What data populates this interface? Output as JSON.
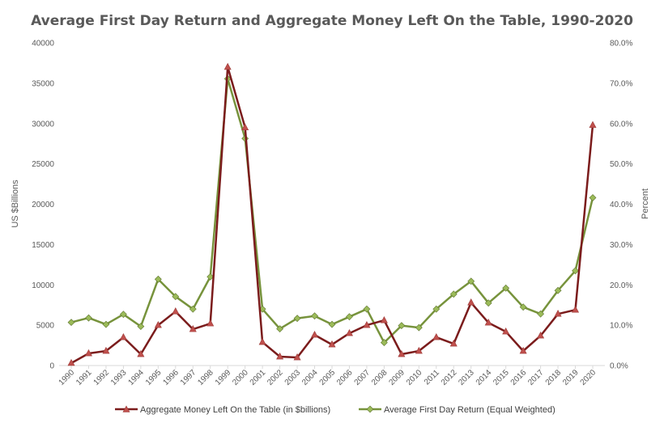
{
  "chart_data": {
    "type": "line",
    "title": "Average First Day Return and Aggregate Money Left On the Table, 1990-2020",
    "y_left_label": "US $Billions",
    "y_right_label": "Percent",
    "y_left_range": [
      0,
      40000
    ],
    "y_left_ticks": [
      "0",
      "5000",
      "10000",
      "15000",
      "20000",
      "25000",
      "30000",
      "35000",
      "40000"
    ],
    "y_left_tick_values": [
      0,
      5000,
      10000,
      15000,
      20000,
      25000,
      30000,
      35000,
      40000
    ],
    "y_right_range": [
      0,
      80
    ],
    "y_right_ticks": [
      "0.0%",
      "10.0%",
      "20.0%",
      "30.0%",
      "40.0%",
      "50.0%",
      "60.0%",
      "70.0%",
      "80.0%"
    ],
    "y_right_tick_values": [
      0,
      10,
      20,
      30,
      40,
      50,
      60,
      70,
      80
    ],
    "grid": false,
    "legend_position": "bottom",
    "categories": [
      "1990",
      "1991",
      "1992",
      "1993",
      "1994",
      "1995",
      "1996",
      "1997",
      "1998",
      "1999",
      "2000",
      "2001",
      "2002",
      "2003",
      "2004",
      "2005",
      "2006",
      "2007",
      "2008",
      "2009",
      "2010",
      "2011",
      "2012",
      "2013",
      "2014",
      "2015",
      "2016",
      "2017",
      "2018",
      "2019",
      "2020"
    ],
    "series": [
      {
        "name": "Aggregate Money Left On the Table (in $billions)",
        "axis": "left",
        "line_color": "#7b1c1c",
        "marker_color": "#c0504d",
        "marker": "triangle",
        "values": [
          300,
          1500,
          1800,
          3500,
          1400,
          5000,
          6700,
          4500,
          5200,
          37000,
          29500,
          2900,
          1100,
          1000,
          3800,
          2600,
          4000,
          5000,
          5600,
          1400,
          1800,
          3500,
          2700,
          7800,
          5300,
          4200,
          1800,
          3700,
          6400,
          6900,
          29800
        ]
      },
      {
        "name": "Average First Day Return (Equal Weighted)",
        "axis": "right",
        "line_color": "#77933c",
        "marker_color": "#9bbb59",
        "marker": "diamond",
        "values": [
          10.7,
          11.8,
          10.2,
          12.7,
          9.7,
          21.4,
          17.1,
          14.0,
          22.0,
          71.1,
          56.3,
          14.0,
          9.1,
          11.7,
          12.3,
          10.2,
          12.1,
          14.0,
          5.7,
          9.9,
          9.4,
          14.0,
          17.7,
          20.9,
          15.5,
          19.2,
          14.5,
          12.8,
          18.6,
          23.5,
          41.6
        ]
      }
    ]
  }
}
